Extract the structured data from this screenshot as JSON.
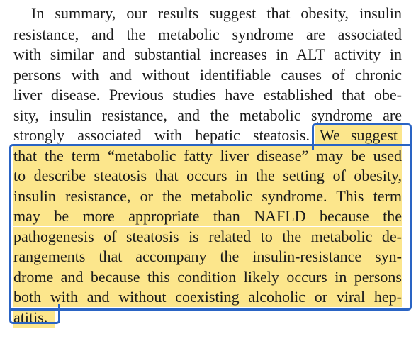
{
  "document": {
    "lines": [
      "In summary, our results suggest that obesity, insulin",
      "resistance, and the metabolic syndrome are associated",
      "with similar and substantial increases in ALT activity in",
      "persons with and without identifiable causes of chronic",
      "liver disease. Previous studies have established that obe-",
      "sity, insulin resistance, and the metabolic syndrome are",
      "strongly associated with hepatic steatosis.",
      "that the term “metabolic fatty liver disease” may be used",
      "to describe steatosis that occurs in the setting of obesity,",
      "insulin resistance, or the metabolic syndrome. This term",
      "may be more appropriate than NAFLD because the",
      "pathogenesis of steatosis is related to the metabolic de-",
      "rangements that accompany the insulin-resistance syn-",
      "drome and because this condition likely occurs in persons",
      "both with and without coexisting alcoholic or viral hep-",
      "atitis."
    ],
    "highlight_start": "We suggest"
  },
  "colors": {
    "highlight": "#fce68c",
    "outline": "#2a64c4",
    "text": "#1b1b1b"
  }
}
